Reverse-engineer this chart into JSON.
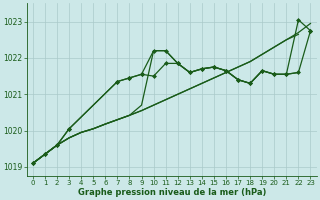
{
  "bg_color": "#cce8e8",
  "grid_color": "#aacaca",
  "line_color": "#1a5c1a",
  "marker_color": "#1a5c1a",
  "xlabel": "Graphe pression niveau de la mer (hPa)",
  "ylim": [
    1018.75,
    1023.5
  ],
  "xlim": [
    -0.5,
    23.5
  ],
  "yticks": [
    1019,
    1020,
    1021,
    1022,
    1023
  ],
  "xticks": [
    0,
    1,
    2,
    3,
    4,
    5,
    6,
    7,
    8,
    9,
    10,
    11,
    12,
    13,
    14,
    15,
    16,
    17,
    18,
    19,
    20,
    21,
    22,
    23
  ],
  "series": [
    {
      "x": [
        0,
        1,
        2,
        3,
        4,
        5,
        6,
        7,
        8,
        9,
        10,
        11,
        12,
        13,
        14,
        15,
        16,
        17,
        18,
        19,
        20,
        21,
        22,
        23
      ],
      "y": [
        1019.1,
        1019.35,
        1019.6,
        1019.8,
        1019.95,
        1020.05,
        1020.18,
        1020.3,
        1020.42,
        1020.55,
        1020.7,
        1020.85,
        1021.0,
        1021.15,
        1021.3,
        1021.45,
        1021.6,
        1021.75,
        1021.9,
        1022.1,
        1022.3,
        1022.5,
        1022.7,
        1022.95
      ],
      "has_markers": false,
      "lw": 0.9
    },
    {
      "x": [
        0,
        1,
        2,
        3,
        4,
        5,
        6,
        7,
        8,
        9,
        10,
        11,
        12,
        13,
        14,
        15,
        16,
        17,
        18,
        19,
        20,
        21,
        22
      ],
      "y": [
        1019.1,
        1019.35,
        1019.6,
        1019.8,
        1019.95,
        1020.05,
        1020.18,
        1020.3,
        1020.42,
        1020.55,
        1020.7,
        1020.85,
        1021.0,
        1021.15,
        1021.3,
        1021.45,
        1021.6,
        1021.75,
        1021.9,
        1022.1,
        1022.3,
        1022.5,
        1022.65
      ],
      "has_markers": false,
      "lw": 0.9
    },
    {
      "x": [
        0,
        1,
        2,
        3,
        4,
        5,
        6,
        7,
        8,
        9,
        10,
        11,
        12,
        13,
        14,
        15,
        16,
        17,
        18,
        19,
        20,
        21,
        22
      ],
      "y": [
        1019.1,
        1019.35,
        1019.6,
        1019.8,
        1019.95,
        1020.05,
        1020.18,
        1020.3,
        1020.42,
        1020.7,
        1022.2,
        1022.2,
        1021.85,
        1021.6,
        1021.7,
        1021.75,
        1021.65,
        1021.4,
        1021.3,
        1021.65,
        1021.55,
        1021.55,
        1021.6
      ],
      "has_markers": false,
      "lw": 0.9
    },
    {
      "x": [
        0,
        1,
        2,
        3,
        7,
        8,
        9,
        10,
        11,
        12,
        13,
        14,
        15,
        16,
        17,
        18,
        19,
        20,
        21,
        22,
        23
      ],
      "y": [
        1019.1,
        1019.35,
        1019.6,
        1020.05,
        1021.35,
        1021.45,
        1021.55,
        1022.2,
        1022.2,
        1021.85,
        1021.6,
        1021.7,
        1021.75,
        1021.65,
        1021.4,
        1021.3,
        1021.65,
        1021.55,
        1021.55,
        1021.6,
        1022.75
      ],
      "has_markers": true,
      "lw": 0.9
    },
    {
      "x": [
        0,
        1,
        2,
        3,
        7,
        8,
        9,
        10,
        11,
        12,
        13,
        14,
        15,
        16,
        17,
        18,
        19,
        20,
        21,
        22,
        23
      ],
      "y": [
        1019.1,
        1019.35,
        1019.6,
        1020.05,
        1021.35,
        1021.45,
        1021.55,
        1021.5,
        1021.85,
        1021.85,
        1021.6,
        1021.7,
        1021.75,
        1021.65,
        1021.4,
        1021.3,
        1021.65,
        1021.55,
        1021.55,
        1023.05,
        1022.75
      ],
      "has_markers": true,
      "lw": 0.9
    }
  ]
}
